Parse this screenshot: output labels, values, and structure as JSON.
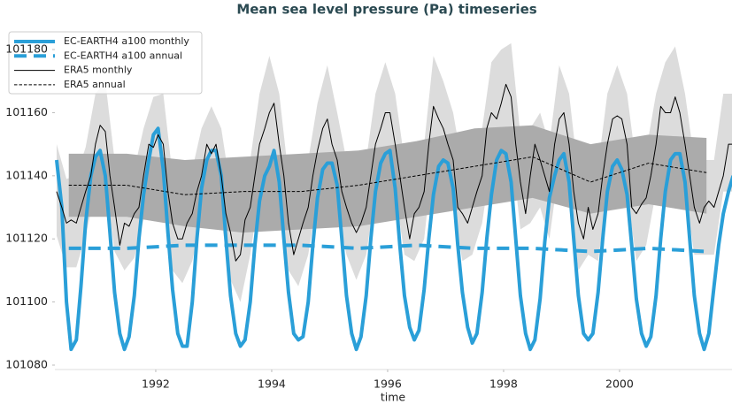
{
  "chart_data": {
    "type": "line",
    "title": "Mean sea level pressure (Pa) timeseries",
    "xlabel": "time",
    "xlim": [
      1990.26,
      2001.94
    ],
    "ylim": [
      101078.6,
      101184.5
    ],
    "xticks": [
      1992,
      1994,
      1996,
      1998,
      2000
    ],
    "yticks": [
      101080,
      101100,
      101120,
      101140,
      101160,
      101180
    ],
    "legend": "upper left",
    "bands": [
      {
        "color": "#dcdcdc",
        "x": [
          1990.29,
          1990.46,
          1990.63,
          1990.79,
          1990.96,
          1991.13,
          1991.29,
          1991.46,
          1991.63,
          1991.79,
          1991.96,
          1992.13,
          1992.29,
          1992.46,
          1992.63,
          1992.79,
          1992.96,
          1993.13,
          1993.29,
          1993.46,
          1993.63,
          1993.79,
          1993.96,
          1994.13,
          1994.29,
          1994.46,
          1994.63,
          1994.79,
          1994.96,
          1995.13,
          1995.29,
          1995.46,
          1995.63,
          1995.79,
          1995.96,
          1996.13,
          1996.29,
          1996.46,
          1996.63,
          1996.79,
          1996.96,
          1997.13,
          1997.29,
          1997.46,
          1997.63,
          1997.79,
          1997.96,
          1998.13,
          1998.29,
          1998.46,
          1998.63,
          1998.79,
          1998.96,
          1999.13,
          1999.29,
          1999.46,
          1999.63,
          1999.79,
          1999.96,
          2000.13,
          2000.29,
          2000.46,
          2000.63,
          2000.79,
          2000.96,
          2001.13,
          2001.29,
          2001.46,
          2001.63,
          2001.79,
          2001.96
        ],
        "low": [
          101121,
          101111,
          101111,
          101121,
          101135,
          101139,
          101116,
          101110,
          101114,
          101126,
          101134,
          101135,
          101110,
          101106,
          101113,
          101126,
          101132,
          101126,
          101107,
          101100,
          101115,
          101135,
          101145,
          101135,
          101110,
          101105,
          101115,
          101133,
          101143,
          101130,
          101115,
          101107,
          101115,
          101135,
          101145,
          101135,
          101115,
          101113,
          101120,
          101147,
          101140,
          101130,
          101113,
          101115,
          101125,
          101145,
          101148,
          101150,
          101123,
          101125,
          101130,
          101120,
          101143,
          101135,
          101110,
          101115,
          101113,
          101135,
          101144,
          101135,
          101113,
          101118,
          101135,
          101145,
          101150,
          101135,
          101115,
          101115,
          101115,
          101135,
          101135
        ],
        "high": [
          101150,
          101139,
          101140,
          101149,
          101166,
          101170,
          101145,
          101139,
          101142,
          101155,
          101165,
          101166,
          101140,
          101134,
          101142,
          101155,
          101162,
          101155,
          101136,
          101130,
          101145,
          101166,
          101178,
          101166,
          101140,
          101135,
          101145,
          101163,
          101175,
          101160,
          101145,
          101137,
          101145,
          101166,
          101176,
          101166,
          101145,
          101143,
          101150,
          101178,
          101170,
          101160,
          101143,
          101145,
          101155,
          101176,
          101180,
          101182,
          101153,
          101155,
          101160,
          101150,
          101175,
          101166,
          101140,
          101145,
          101143,
          101166,
          101175,
          101166,
          101143,
          101148,
          101166,
          101176,
          101181,
          101166,
          101145,
          101145,
          101145,
          101166,
          101166
        ]
      },
      {
        "color": "#ababab",
        "x": [
          1990.5,
          1991.5,
          1992.5,
          1993.5,
          1994.5,
          1995.5,
          1996.5,
          1997.5,
          1998.5,
          1999.5,
          2000.5,
          2001.5
        ],
        "low": [
          101127,
          101127,
          101124,
          101122,
          101123,
          101124,
          101127,
          101130,
          101133,
          101128,
          101131,
          101128
        ],
        "high": [
          101147,
          101147,
          101145,
          101146,
          101147,
          101148,
          101151,
          101155,
          101156,
          101150,
          101153,
          101152
        ]
      }
    ],
    "series": [
      {
        "name": "EC-EARTH4 a100 monthly",
        "color": "#2a9fd8",
        "linewidth": 4,
        "linestyle": "solid",
        "x": [
          1990.29,
          1990.38,
          1990.46,
          1990.54,
          1990.63,
          1990.71,
          1990.79,
          1990.88,
          1990.96,
          1991.04,
          1991.13,
          1991.21,
          1991.29,
          1991.38,
          1991.46,
          1991.54,
          1991.63,
          1991.71,
          1991.79,
          1991.88,
          1991.96,
          1992.04,
          1992.13,
          1992.21,
          1992.29,
          1992.38,
          1992.46,
          1992.54,
          1992.63,
          1992.71,
          1992.79,
          1992.88,
          1992.96,
          1993.04,
          1993.13,
          1993.21,
          1993.29,
          1993.38,
          1993.46,
          1993.54,
          1993.63,
          1993.71,
          1993.79,
          1993.88,
          1993.96,
          1994.04,
          1994.13,
          1994.21,
          1994.29,
          1994.38,
          1994.46,
          1994.54,
          1994.63,
          1994.71,
          1994.79,
          1994.88,
          1994.96,
          1995.04,
          1995.13,
          1995.21,
          1995.29,
          1995.38,
          1995.46,
          1995.54,
          1995.63,
          1995.71,
          1995.79,
          1995.88,
          1995.96,
          1996.04,
          1996.13,
          1996.21,
          1996.29,
          1996.38,
          1996.46,
          1996.54,
          1996.63,
          1996.71,
          1996.79,
          1996.88,
          1996.96,
          1997.04,
          1997.13,
          1997.21,
          1997.29,
          1997.38,
          1997.46,
          1997.54,
          1997.63,
          1997.71,
          1997.79,
          1997.88,
          1997.96,
          1998.04,
          1998.13,
          1998.21,
          1998.29,
          1998.38,
          1998.46,
          1998.54,
          1998.63,
          1998.71,
          1998.79,
          1998.88,
          1998.96,
          1999.04,
          1999.13,
          1999.21,
          1999.29,
          1999.38,
          1999.46,
          1999.54,
          1999.63,
          1999.71,
          1999.79,
          1999.88,
          1999.96,
          2000.04,
          2000.13,
          2000.21,
          2000.29,
          2000.38,
          2000.46,
          2000.54,
          2000.63,
          2000.71,
          2000.79,
          2000.88,
          2000.96,
          2001.04,
          2001.13,
          2001.21,
          2001.29,
          2001.38,
          2001.46,
          2001.54,
          2001.63,
          2001.71,
          2001.79,
          2001.88,
          2001.96
        ],
        "values": [
          101145,
          101130,
          101100,
          101085,
          101088,
          101105,
          101125,
          101140,
          101146,
          101148,
          101140,
          101122,
          101103,
          101090,
          101085,
          101089,
          101102,
          101120,
          101134,
          101145,
          101153,
          101155,
          101142,
          101122,
          101104,
          101090,
          101086,
          101086,
          101100,
          101120,
          101136,
          101145,
          101148,
          101148,
          101140,
          101120,
          101102,
          101090,
          101086,
          101088,
          101100,
          101118,
          101132,
          101140,
          101143,
          101148,
          101138,
          101120,
          101103,
          101090,
          101088,
          101089,
          101100,
          101118,
          101133,
          101142,
          101144,
          101144,
          101137,
          101120,
          101102,
          101090,
          101085,
          101089,
          101102,
          101120,
          101135,
          101144,
          101147,
          101148,
          101136,
          101118,
          101102,
          101092,
          101088,
          101091,
          101104,
          101120,
          101134,
          101143,
          101145,
          101144,
          101136,
          101118,
          101103,
          101092,
          101087,
          101090,
          101103,
          101120,
          101134,
          101145,
          101148,
          101147,
          101138,
          101120,
          101102,
          101090,
          101085,
          101088,
          101101,
          101119,
          101133,
          101140,
          101145,
          101147,
          101138,
          101120,
          101102,
          101090,
          101088,
          101090,
          101103,
          101120,
          101135,
          101143,
          101145,
          101142,
          101134,
          101118,
          101101,
          101090,
          101086,
          101089,
          101102,
          101120,
          101135,
          101145,
          101147,
          101147,
          101138,
          101120,
          101102,
          101090,
          101085,
          101090,
          101105,
          101118,
          101128,
          101135,
          101140
        ]
      },
      {
        "name": "EC-EARTH4 a100 annual",
        "color": "#2a9fd8",
        "linewidth": 4,
        "linestyle": "dashed",
        "x": [
          1990.5,
          1991.5,
          1992.5,
          1993.5,
          1994.5,
          1995.5,
          1996.5,
          1997.5,
          1998.5,
          1999.5,
          2000.5,
          2001.5
        ],
        "values": [
          101117,
          101117,
          101118,
          101118,
          101118,
          101117,
          101118,
          101117,
          101117,
          101116,
          101117,
          101116
        ]
      },
      {
        "name": "ERA5 monthly",
        "color": "#000000",
        "linewidth": 1,
        "linestyle": "solid",
        "x": [
          1990.29,
          1990.38,
          1990.46,
          1990.54,
          1990.63,
          1990.71,
          1990.79,
          1990.88,
          1990.96,
          1991.04,
          1991.13,
          1991.21,
          1991.29,
          1991.38,
          1991.46,
          1991.54,
          1991.63,
          1991.71,
          1991.79,
          1991.88,
          1991.96,
          1992.04,
          1992.13,
          1992.21,
          1992.29,
          1992.38,
          1992.46,
          1992.54,
          1992.63,
          1992.71,
          1992.79,
          1992.88,
          1992.96,
          1993.04,
          1993.13,
          1993.21,
          1993.29,
          1993.38,
          1993.46,
          1993.54,
          1993.63,
          1993.71,
          1993.79,
          1993.88,
          1993.96,
          1994.04,
          1994.13,
          1994.21,
          1994.29,
          1994.38,
          1994.46,
          1994.54,
          1994.63,
          1994.71,
          1994.79,
          1994.88,
          1994.96,
          1995.04,
          1995.13,
          1995.21,
          1995.29,
          1995.38,
          1995.46,
          1995.54,
          1995.63,
          1995.71,
          1995.79,
          1995.88,
          1995.96,
          1996.04,
          1996.13,
          1996.21,
          1996.29,
          1996.38,
          1996.46,
          1996.54,
          1996.63,
          1996.71,
          1996.79,
          1996.88,
          1996.96,
          1997.04,
          1997.13,
          1997.21,
          1997.29,
          1997.38,
          1997.46,
          1997.54,
          1997.63,
          1997.71,
          1997.79,
          1997.88,
          1997.96,
          1998.04,
          1998.13,
          1998.21,
          1998.29,
          1998.38,
          1998.46,
          1998.54,
          1998.63,
          1998.71,
          1998.79,
          1998.88,
          1998.96,
          1999.04,
          1999.13,
          1999.21,
          1999.29,
          1999.38,
          1999.46,
          1999.54,
          1999.63,
          1999.71,
          1999.79,
          1999.88,
          1999.96,
          2000.04,
          2000.13,
          2000.21,
          2000.29,
          2000.38,
          2000.46,
          2000.54,
          2000.63,
          2000.71,
          2000.79,
          2000.88,
          2000.96,
          2001.04,
          2001.13,
          2001.21,
          2001.29,
          2001.38,
          2001.46,
          2001.54,
          2001.63,
          2001.71,
          2001.79,
          2001.88,
          2001.96
        ],
        "values": [
          101135,
          101130,
          101125,
          101126,
          101125,
          101130,
          101135,
          101140,
          101150,
          101156,
          101154,
          101140,
          101130,
          101118,
          101125,
          101124,
          101128,
          101130,
          101140,
          101150,
          101149,
          101153,
          101150,
          101135,
          101125,
          101120,
          101120,
          101125,
          101128,
          101135,
          101140,
          101150,
          101147,
          101150,
          101140,
          101128,
          101122,
          101113,
          101115,
          101126,
          101130,
          101140,
          101150,
          101155,
          101160,
          101163,
          101150,
          101140,
          101125,
          101115,
          101120,
          101125,
          101130,
          101140,
          101148,
          101155,
          101158,
          101150,
          101145,
          101135,
          101130,
          101125,
          101122,
          101125,
          101130,
          101140,
          101150,
          101155,
          101160,
          101160,
          101150,
          101140,
          101130,
          101120,
          101128,
          101130,
          101135,
          101150,
          101162,
          101158,
          101155,
          101150,
          101145,
          101130,
          101128,
          101125,
          101130,
          101135,
          101140,
          101155,
          101160,
          101158,
          101163,
          101169,
          101165,
          101150,
          101138,
          101128,
          101140,
          101150,
          101145,
          101140,
          101135,
          101150,
          101158,
          101160,
          101150,
          101135,
          101125,
          101120,
          101130,
          101123,
          101128,
          101140,
          101150,
          101158,
          101159,
          101158,
          101150,
          101130,
          101128,
          101131,
          101133,
          101140,
          101150,
          101162,
          101160,
          101160,
          101165,
          101160,
          101150,
          101140,
          101130,
          101125,
          101130,
          101132,
          101130,
          101135,
          101140,
          101150,
          101150
        ]
      },
      {
        "name": "ERA5 annual",
        "color": "#000000",
        "linewidth": 1,
        "linestyle": "dashed",
        "x": [
          1990.5,
          1991.5,
          1992.5,
          1993.5,
          1994.5,
          1995.5,
          1996.5,
          1997.5,
          1998.5,
          1999.5,
          2000.5,
          2001.5
        ],
        "values": [
          101137,
          101137,
          101134,
          101135,
          101135,
          101137,
          101140,
          101143,
          101146,
          101138,
          101144,
          101141
        ]
      }
    ]
  }
}
